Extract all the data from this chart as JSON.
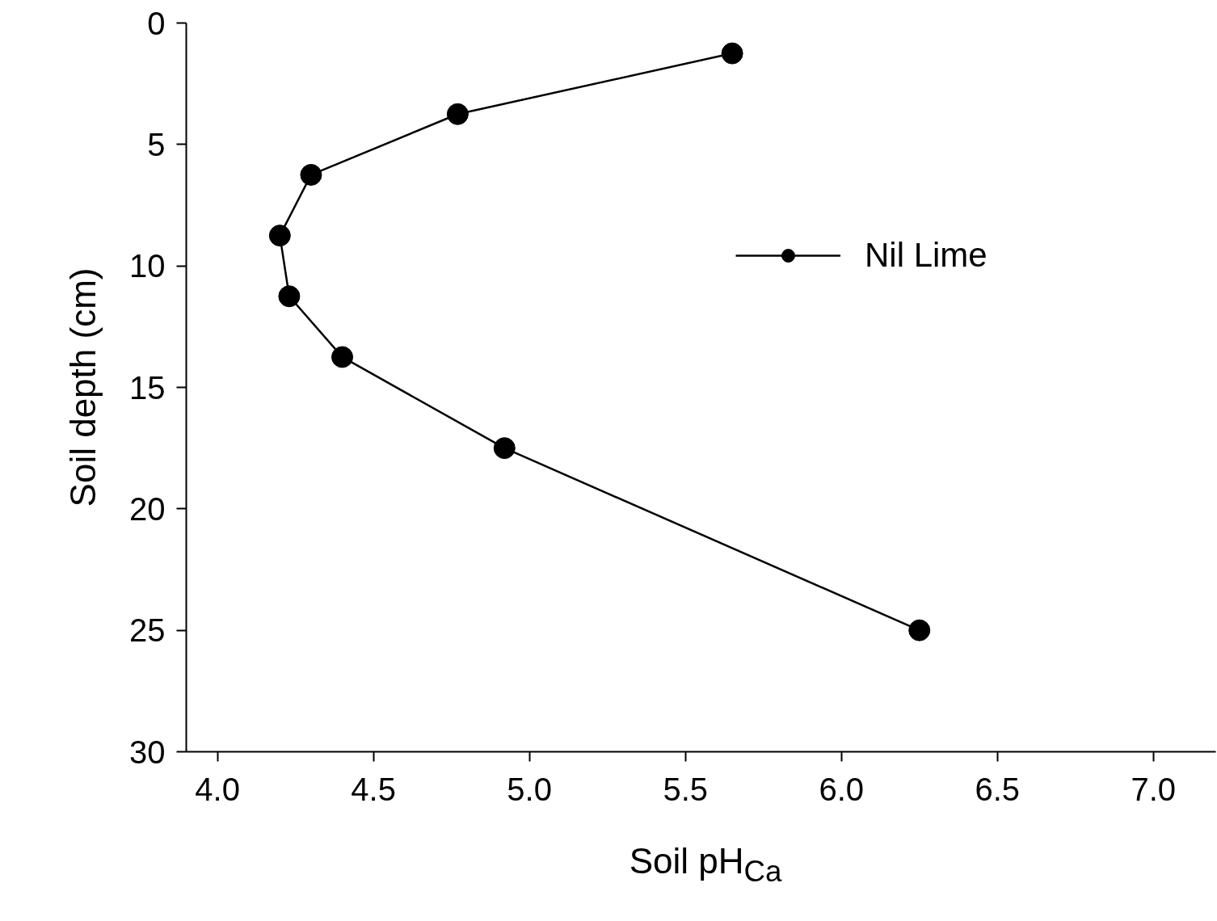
{
  "chart_data": {
    "type": "line",
    "xlabel": "Soil pH$_{Ca}$",
    "ylabel": "Soil depth (cm)",
    "x": [
      5.65,
      4.77,
      4.3,
      4.2,
      4.23,
      4.4,
      4.92,
      6.25
    ],
    "series": [
      {
        "name": "Nil Lime",
        "color": "#000000",
        "values": [
          1.25,
          3.75,
          6.25,
          8.75,
          11.25,
          13.75,
          17.5,
          25
        ]
      }
    ],
    "xlim": [
      3.9,
      7.2
    ],
    "xticks": [
      {
        "value": 4,
        "label": "4.0"
      },
      4.5,
      {
        "value": 5,
        "label": "5.0"
      },
      5.5,
      {
        "value": 6,
        "label": "6.0"
      },
      6.5,
      {
        "value": 7,
        "label": "7.0"
      }
    ],
    "ylim": [
      30,
      0
    ],
    "yticks": [
      0,
      5,
      10,
      15,
      20,
      25,
      30
    ],
    "marker": "circle",
    "line_style": "solid",
    "grid": false,
    "legend": "top right"
  }
}
